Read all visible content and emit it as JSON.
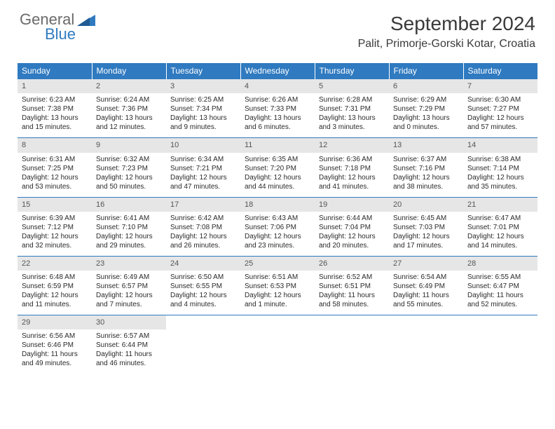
{
  "logo": {
    "general": "General",
    "blue": "Blue"
  },
  "header": {
    "month_title": "September 2024",
    "location": "Palit, Primorje-Gorski Kotar, Croatia"
  },
  "colors": {
    "header_bg": "#2f7ac0",
    "daynum_bg": "#e6e6e6",
    "week_divider": "#2f7ac0"
  },
  "days_of_week": [
    "Sunday",
    "Monday",
    "Tuesday",
    "Wednesday",
    "Thursday",
    "Friday",
    "Saturday"
  ],
  "weeks": [
    [
      {
        "num": "1",
        "sunrise": "Sunrise: 6:23 AM",
        "sunset": "Sunset: 7:38 PM",
        "daylight1": "Daylight: 13 hours",
        "daylight2": "and 15 minutes."
      },
      {
        "num": "2",
        "sunrise": "Sunrise: 6:24 AM",
        "sunset": "Sunset: 7:36 PM",
        "daylight1": "Daylight: 13 hours",
        "daylight2": "and 12 minutes."
      },
      {
        "num": "3",
        "sunrise": "Sunrise: 6:25 AM",
        "sunset": "Sunset: 7:34 PM",
        "daylight1": "Daylight: 13 hours",
        "daylight2": "and 9 minutes."
      },
      {
        "num": "4",
        "sunrise": "Sunrise: 6:26 AM",
        "sunset": "Sunset: 7:33 PM",
        "daylight1": "Daylight: 13 hours",
        "daylight2": "and 6 minutes."
      },
      {
        "num": "5",
        "sunrise": "Sunrise: 6:28 AM",
        "sunset": "Sunset: 7:31 PM",
        "daylight1": "Daylight: 13 hours",
        "daylight2": "and 3 minutes."
      },
      {
        "num": "6",
        "sunrise": "Sunrise: 6:29 AM",
        "sunset": "Sunset: 7:29 PM",
        "daylight1": "Daylight: 13 hours",
        "daylight2": "and 0 minutes."
      },
      {
        "num": "7",
        "sunrise": "Sunrise: 6:30 AM",
        "sunset": "Sunset: 7:27 PM",
        "daylight1": "Daylight: 12 hours",
        "daylight2": "and 57 minutes."
      }
    ],
    [
      {
        "num": "8",
        "sunrise": "Sunrise: 6:31 AM",
        "sunset": "Sunset: 7:25 PM",
        "daylight1": "Daylight: 12 hours",
        "daylight2": "and 53 minutes."
      },
      {
        "num": "9",
        "sunrise": "Sunrise: 6:32 AM",
        "sunset": "Sunset: 7:23 PM",
        "daylight1": "Daylight: 12 hours",
        "daylight2": "and 50 minutes."
      },
      {
        "num": "10",
        "sunrise": "Sunrise: 6:34 AM",
        "sunset": "Sunset: 7:21 PM",
        "daylight1": "Daylight: 12 hours",
        "daylight2": "and 47 minutes."
      },
      {
        "num": "11",
        "sunrise": "Sunrise: 6:35 AM",
        "sunset": "Sunset: 7:20 PM",
        "daylight1": "Daylight: 12 hours",
        "daylight2": "and 44 minutes."
      },
      {
        "num": "12",
        "sunrise": "Sunrise: 6:36 AM",
        "sunset": "Sunset: 7:18 PM",
        "daylight1": "Daylight: 12 hours",
        "daylight2": "and 41 minutes."
      },
      {
        "num": "13",
        "sunrise": "Sunrise: 6:37 AM",
        "sunset": "Sunset: 7:16 PM",
        "daylight1": "Daylight: 12 hours",
        "daylight2": "and 38 minutes."
      },
      {
        "num": "14",
        "sunrise": "Sunrise: 6:38 AM",
        "sunset": "Sunset: 7:14 PM",
        "daylight1": "Daylight: 12 hours",
        "daylight2": "and 35 minutes."
      }
    ],
    [
      {
        "num": "15",
        "sunrise": "Sunrise: 6:39 AM",
        "sunset": "Sunset: 7:12 PM",
        "daylight1": "Daylight: 12 hours",
        "daylight2": "and 32 minutes."
      },
      {
        "num": "16",
        "sunrise": "Sunrise: 6:41 AM",
        "sunset": "Sunset: 7:10 PM",
        "daylight1": "Daylight: 12 hours",
        "daylight2": "and 29 minutes."
      },
      {
        "num": "17",
        "sunrise": "Sunrise: 6:42 AM",
        "sunset": "Sunset: 7:08 PM",
        "daylight1": "Daylight: 12 hours",
        "daylight2": "and 26 minutes."
      },
      {
        "num": "18",
        "sunrise": "Sunrise: 6:43 AM",
        "sunset": "Sunset: 7:06 PM",
        "daylight1": "Daylight: 12 hours",
        "daylight2": "and 23 minutes."
      },
      {
        "num": "19",
        "sunrise": "Sunrise: 6:44 AM",
        "sunset": "Sunset: 7:04 PM",
        "daylight1": "Daylight: 12 hours",
        "daylight2": "and 20 minutes."
      },
      {
        "num": "20",
        "sunrise": "Sunrise: 6:45 AM",
        "sunset": "Sunset: 7:03 PM",
        "daylight1": "Daylight: 12 hours",
        "daylight2": "and 17 minutes."
      },
      {
        "num": "21",
        "sunrise": "Sunrise: 6:47 AM",
        "sunset": "Sunset: 7:01 PM",
        "daylight1": "Daylight: 12 hours",
        "daylight2": "and 14 minutes."
      }
    ],
    [
      {
        "num": "22",
        "sunrise": "Sunrise: 6:48 AM",
        "sunset": "Sunset: 6:59 PM",
        "daylight1": "Daylight: 12 hours",
        "daylight2": "and 11 minutes."
      },
      {
        "num": "23",
        "sunrise": "Sunrise: 6:49 AM",
        "sunset": "Sunset: 6:57 PM",
        "daylight1": "Daylight: 12 hours",
        "daylight2": "and 7 minutes."
      },
      {
        "num": "24",
        "sunrise": "Sunrise: 6:50 AM",
        "sunset": "Sunset: 6:55 PM",
        "daylight1": "Daylight: 12 hours",
        "daylight2": "and 4 minutes."
      },
      {
        "num": "25",
        "sunrise": "Sunrise: 6:51 AM",
        "sunset": "Sunset: 6:53 PM",
        "daylight1": "Daylight: 12 hours",
        "daylight2": "and 1 minute."
      },
      {
        "num": "26",
        "sunrise": "Sunrise: 6:52 AM",
        "sunset": "Sunset: 6:51 PM",
        "daylight1": "Daylight: 11 hours",
        "daylight2": "and 58 minutes."
      },
      {
        "num": "27",
        "sunrise": "Sunrise: 6:54 AM",
        "sunset": "Sunset: 6:49 PM",
        "daylight1": "Daylight: 11 hours",
        "daylight2": "and 55 minutes."
      },
      {
        "num": "28",
        "sunrise": "Sunrise: 6:55 AM",
        "sunset": "Sunset: 6:47 PM",
        "daylight1": "Daylight: 11 hours",
        "daylight2": "and 52 minutes."
      }
    ],
    [
      {
        "num": "29",
        "sunrise": "Sunrise: 6:56 AM",
        "sunset": "Sunset: 6:46 PM",
        "daylight1": "Daylight: 11 hours",
        "daylight2": "and 49 minutes."
      },
      {
        "num": "30",
        "sunrise": "Sunrise: 6:57 AM",
        "sunset": "Sunset: 6:44 PM",
        "daylight1": "Daylight: 11 hours",
        "daylight2": "and 46 minutes."
      },
      {
        "empty": true
      },
      {
        "empty": true
      },
      {
        "empty": true
      },
      {
        "empty": true
      },
      {
        "empty": true
      }
    ]
  ]
}
